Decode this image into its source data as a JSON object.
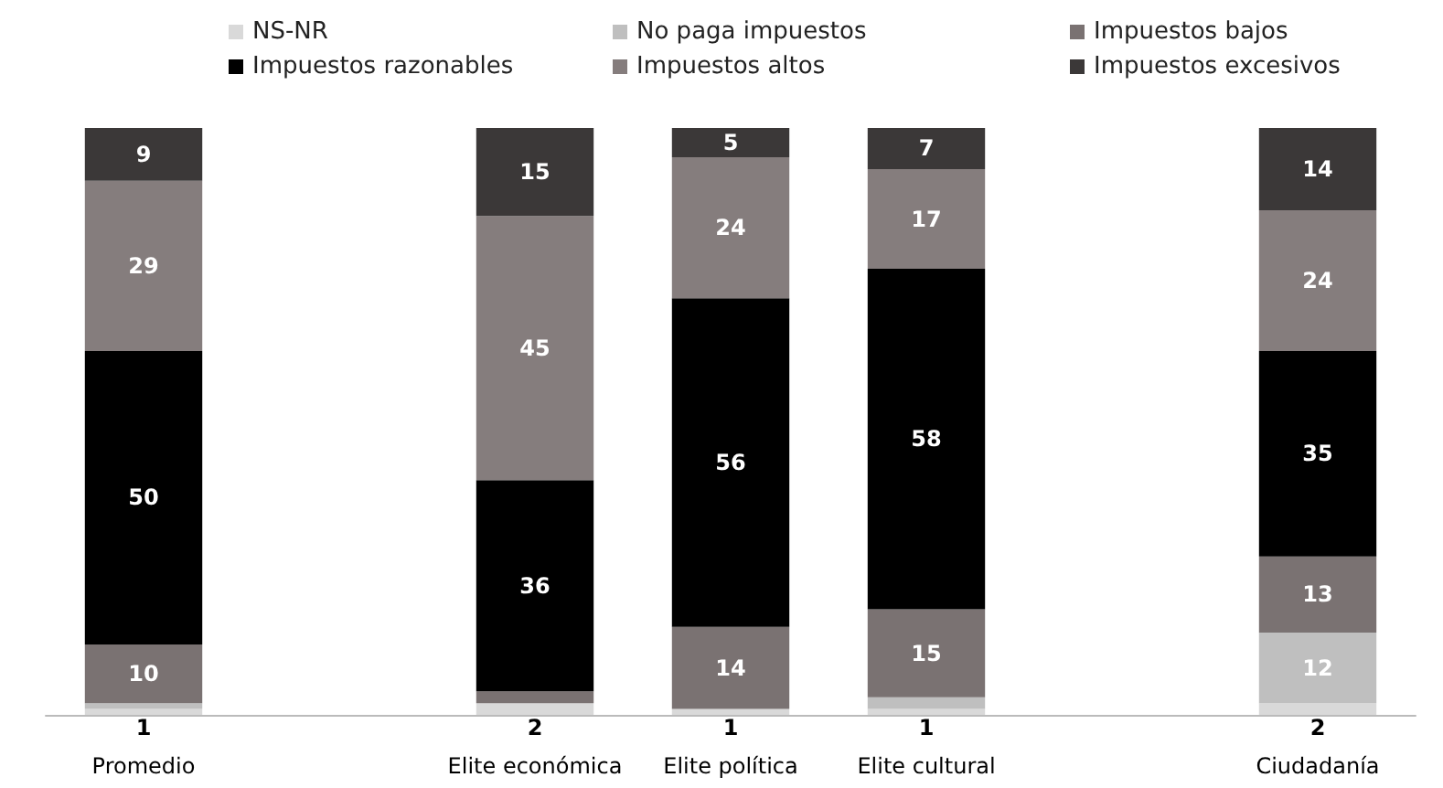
{
  "chart_data": {
    "type": "bar",
    "stacked": true,
    "legend": "top",
    "categories": [
      "Promedio",
      null,
      "Elite económica",
      "Elite política",
      "Elite cultural",
      null,
      "Ciudadanía"
    ],
    "series": [
      {
        "name": "NS-NR",
        "color": "#d9d9d9",
        "values": [
          1,
          null,
          2,
          1,
          1,
          null,
          2
        ],
        "value_labels": [
          "1",
          null,
          "2",
          "1",
          "1",
          null,
          "2"
        ]
      },
      {
        "name": "No paga impuestos",
        "color": "#bfbfbf",
        "values": [
          1,
          null,
          null,
          null,
          2,
          null,
          12
        ],
        "value_labels": [
          null,
          null,
          null,
          null,
          null,
          null,
          "12"
        ]
      },
      {
        "name": "Impuestos bajos",
        "color": "#7a7272",
        "values": [
          10,
          null,
          2,
          14,
          15,
          null,
          13
        ],
        "value_labels": [
          "10",
          null,
          null,
          "14",
          "15",
          null,
          "13"
        ]
      },
      {
        "name": "Impuestos razonables",
        "color": "#000000",
        "values": [
          50,
          null,
          36,
          56,
          58,
          null,
          35
        ],
        "value_labels": [
          "50",
          null,
          "36",
          "56",
          "58",
          null,
          "35"
        ]
      },
      {
        "name": "Impuestos altos",
        "color": "#857d7d",
        "values": [
          29,
          null,
          45,
          24,
          17,
          null,
          24
        ],
        "value_labels": [
          "29",
          null,
          "45",
          "24",
          "17",
          null,
          "24"
        ]
      },
      {
        "name": "Impuestos excesivos",
        "color": "#3b3838",
        "values": [
          9,
          null,
          15,
          5,
          7,
          null,
          14
        ],
        "value_labels": [
          "9",
          null,
          "15",
          "5",
          "7",
          null,
          "14"
        ]
      }
    ]
  }
}
